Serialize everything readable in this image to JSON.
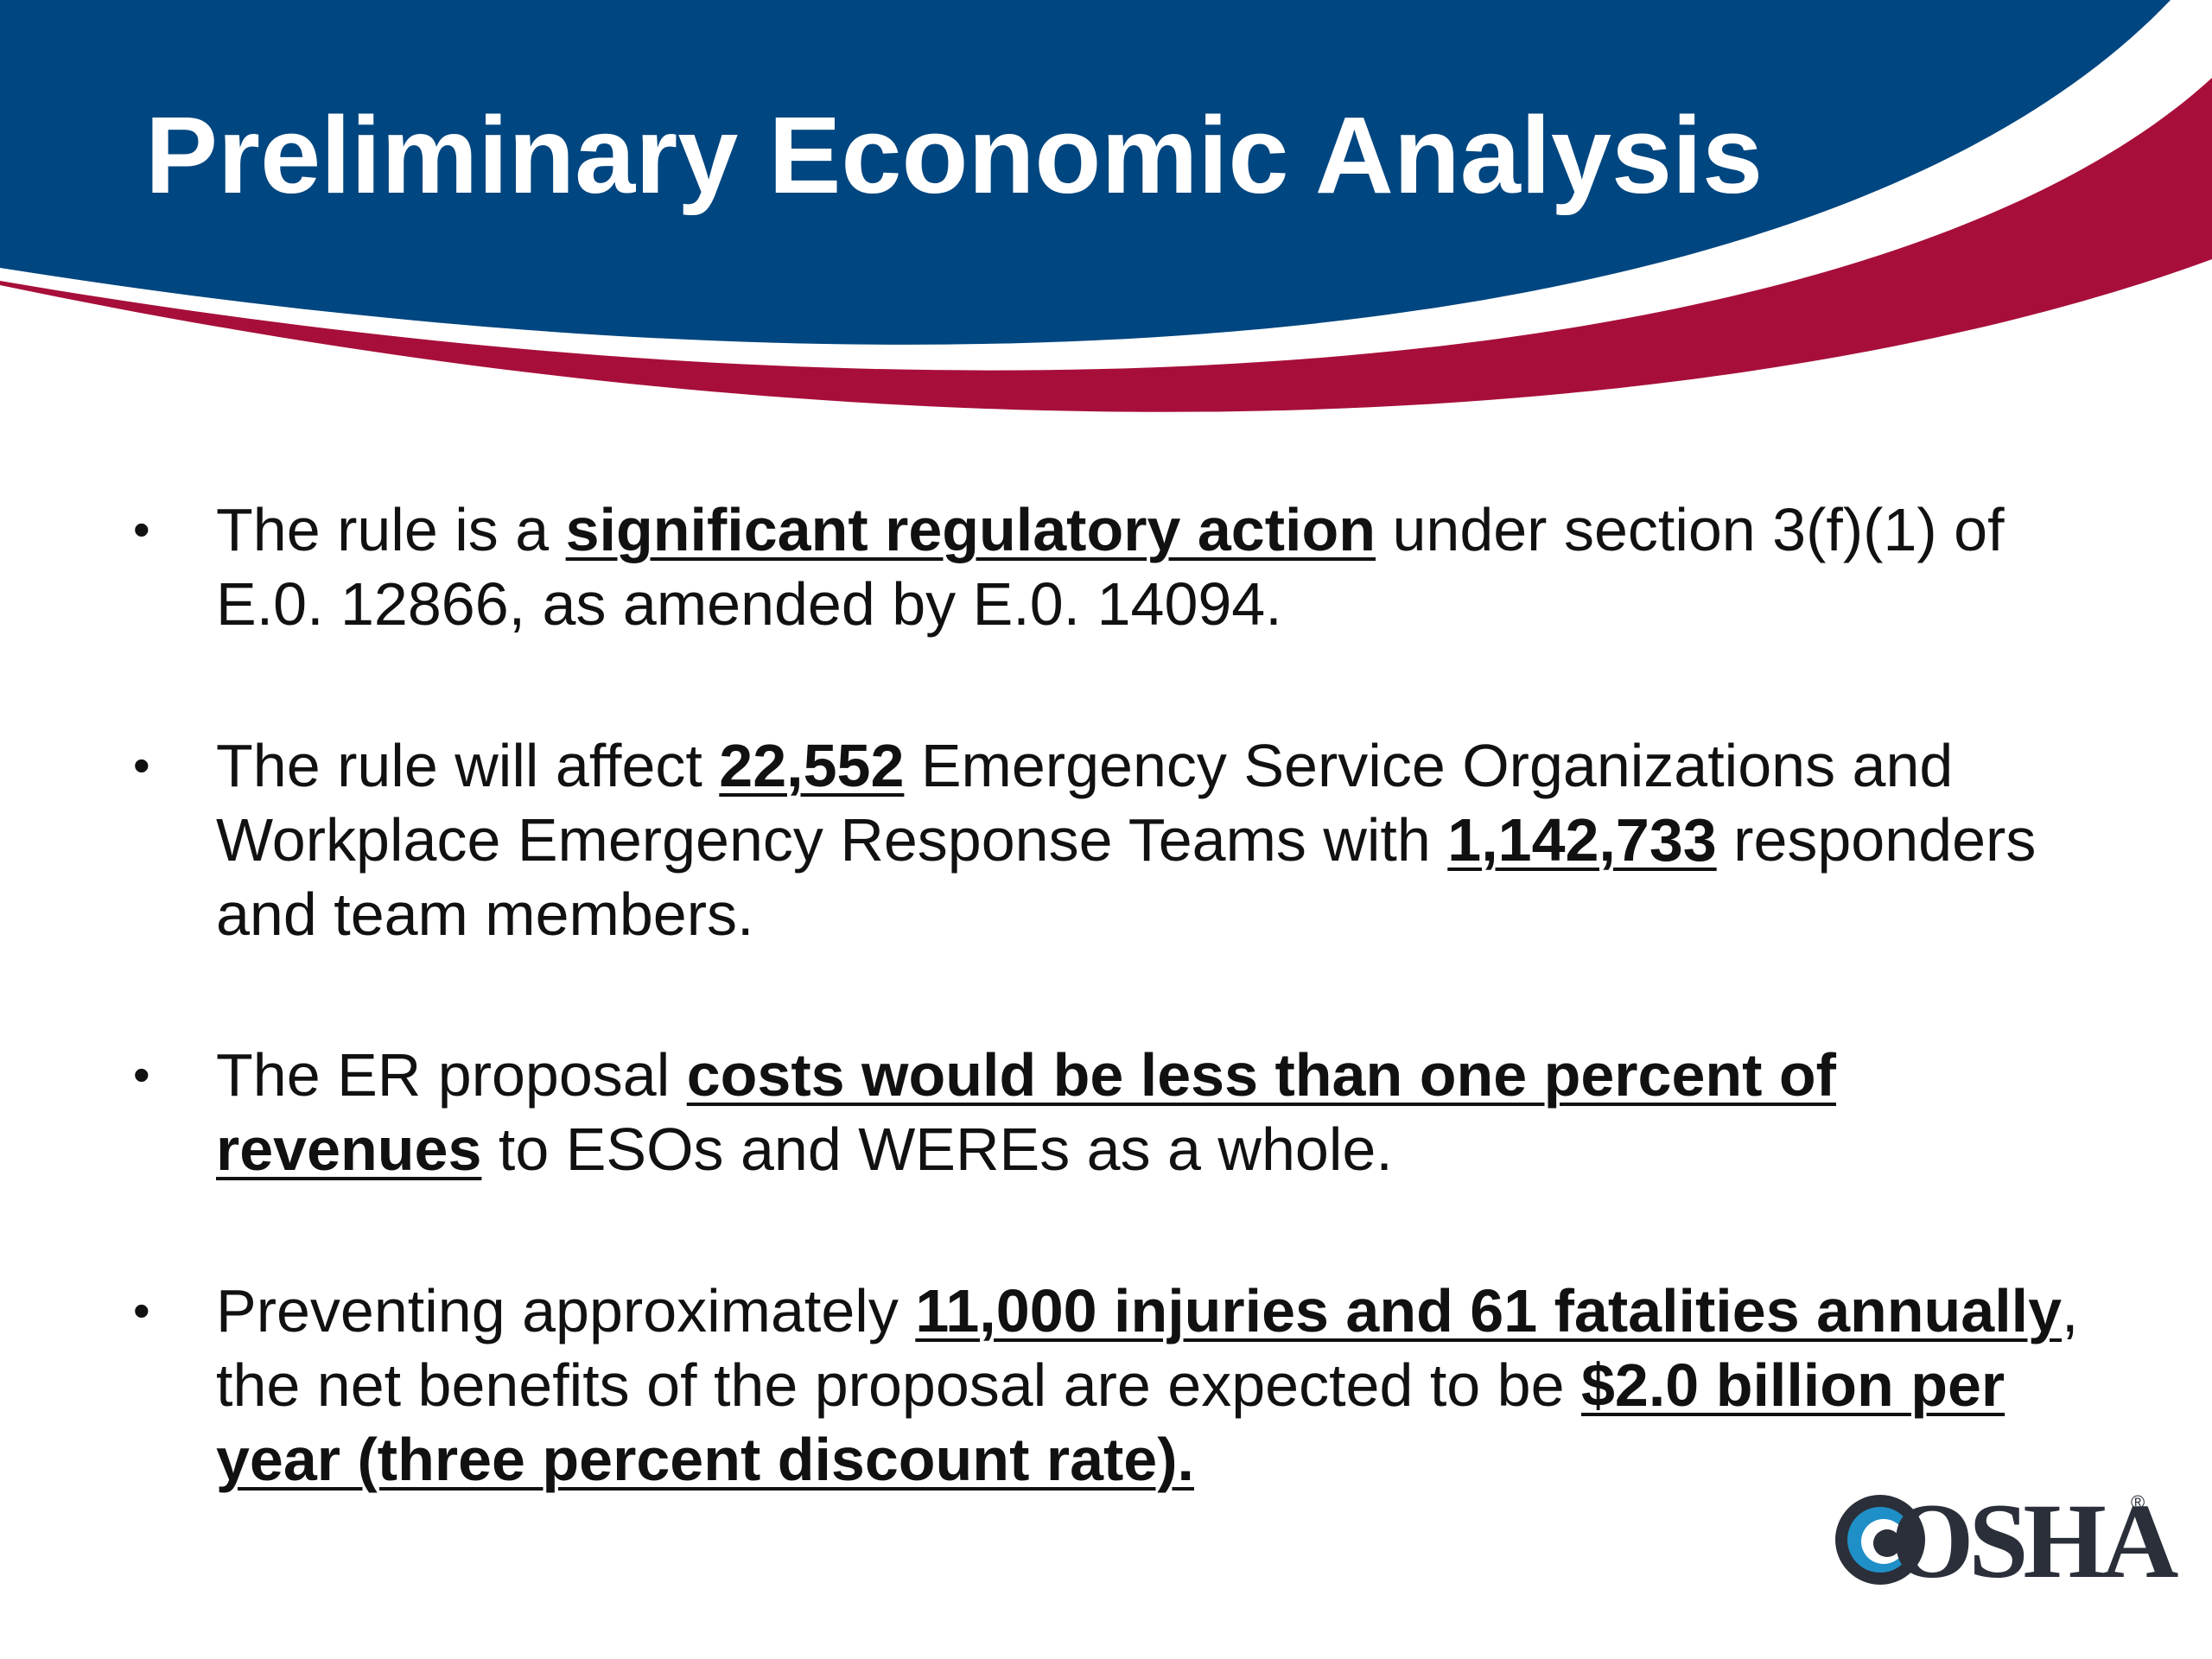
{
  "slide": {
    "title": "Preliminary Economic Analysis",
    "colors": {
      "banner_blue": "#004680",
      "banner_red": "#a70f3a",
      "title_text": "#ffffff",
      "body_text": "#111111",
      "logo_dark": "#2b2f3a",
      "logo_blue": "#1f8fc7"
    },
    "bullets": [
      {
        "t1": "The rule is a ",
        "b1": "significant regulatory action",
        "t2": " under section 3(f)(1) of E.0. 12866, as amended by E.0. 14094."
      },
      {
        "t1": "The rule will affect ",
        "b1": "22,552",
        "t2": " Emergency Service Organizations and Workplace Emergency Response Teams with ",
        "b2": "1,142,733",
        "t3": " responders and team members."
      },
      {
        "t1": "The ER proposal ",
        "b1": "costs would be less than one percent of revenues",
        "t2": " to ESOs and WEREs as a whole."
      },
      {
        "t1": "Preventing approximately ",
        "b1": "11,000 injuries and 61 fatalities annually",
        "t2": ", the net benefits of the proposal are expected to be ",
        "b2": "$2.0 billion per year (three percent discount rate)."
      }
    ],
    "logo": {
      "text": "OSHA",
      "registered_mark": "®"
    }
  }
}
